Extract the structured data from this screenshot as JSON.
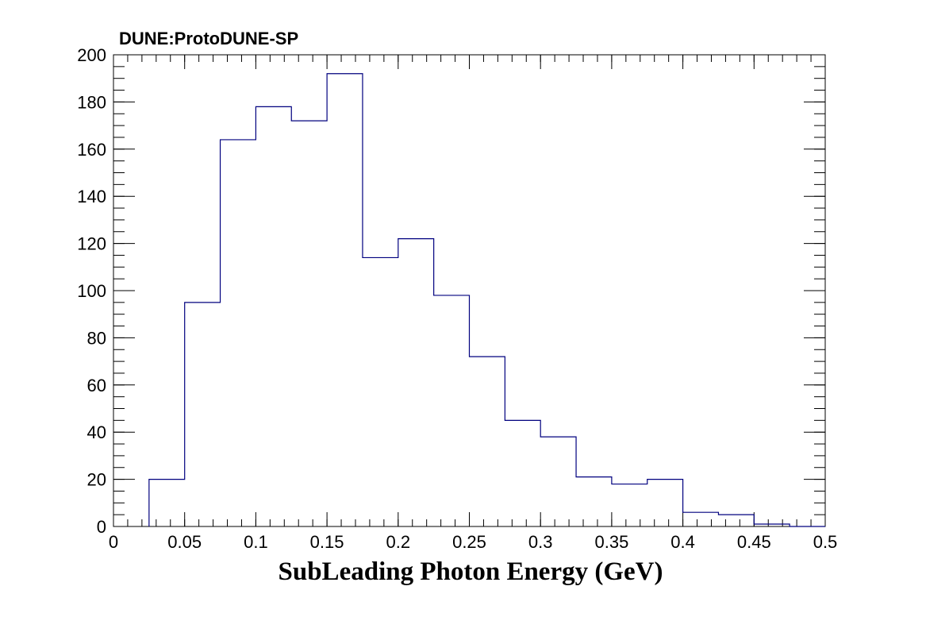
{
  "chart_data": {
    "type": "histogram",
    "title": "DUNE:ProtoDUNE-SP",
    "xlabel": "SubLeading Photon Energy (GeV)",
    "ylabel": "",
    "xlim": [
      0,
      0.5
    ],
    "ylim": [
      0,
      200
    ],
    "x_ticks": [
      "0",
      "0.05",
      "0.1",
      "0.15",
      "0.2",
      "0.25",
      "0.3",
      "0.35",
      "0.4",
      "0.45",
      "0.5"
    ],
    "y_ticks": [
      "0",
      "20",
      "40",
      "60",
      "80",
      "100",
      "120",
      "140",
      "160",
      "180",
      "200"
    ],
    "bin_width": 0.025,
    "bin_edges": [
      0,
      0.025,
      0.05,
      0.075,
      0.1,
      0.125,
      0.15,
      0.175,
      0.2,
      0.225,
      0.25,
      0.275,
      0.3,
      0.325,
      0.35,
      0.375,
      0.4,
      0.425,
      0.45,
      0.475,
      0.5
    ],
    "values": [
      0,
      20,
      95,
      164,
      178,
      172,
      192,
      114,
      122,
      98,
      72,
      45,
      38,
      21,
      18,
      20,
      6,
      5,
      1,
      0
    ],
    "line_color": "#00007f",
    "grid": false,
    "legend": "none"
  }
}
